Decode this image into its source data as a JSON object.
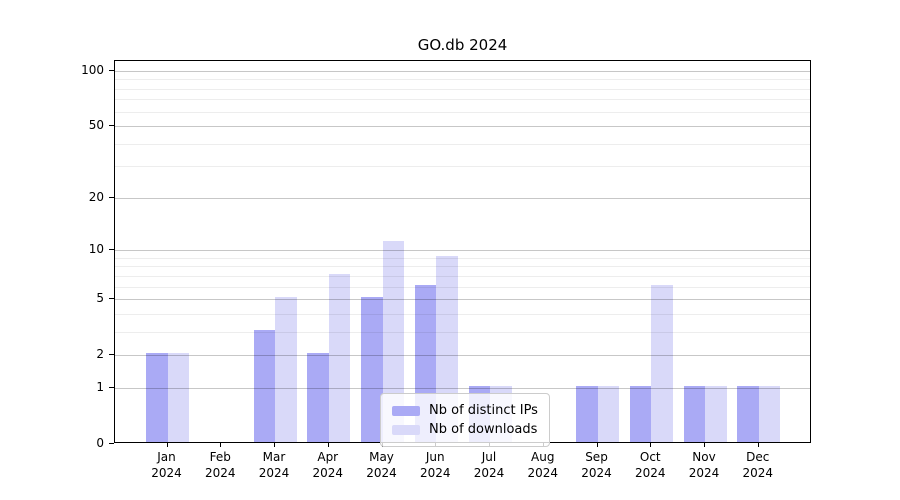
{
  "chart_data": {
    "type": "bar",
    "title": "GO.db 2024",
    "categories": [
      "Jan",
      "Feb",
      "Mar",
      "Apr",
      "May",
      "Jun",
      "Jul",
      "Aug",
      "Sep",
      "Oct",
      "Nov",
      "Dec"
    ],
    "category_year": "2024",
    "series": [
      {
        "name": "Nb of distinct IPs",
        "color": "#aaaaf5",
        "values": [
          2,
          0,
          3,
          2,
          5,
          6,
          1,
          0,
          1,
          1,
          1,
          1
        ]
      },
      {
        "name": "Nb of downloads",
        "color": "#d9d9f9",
        "values": [
          2,
          0,
          5,
          7,
          11,
          9,
          1,
          0,
          1,
          6,
          1,
          1
        ]
      }
    ],
    "y_axis": {
      "scale": "log10(value+1)",
      "major_ticks": [
        0,
        1,
        2,
        5,
        10,
        20,
        50,
        100
      ],
      "minor_ticks": [
        3,
        4,
        6,
        7,
        8,
        9,
        30,
        40,
        60,
        70,
        80,
        90
      ],
      "max": 100
    },
    "legend": {
      "position": "lower center"
    },
    "grid": true,
    "axis_color": "#000000",
    "background_color": "#ffffff"
  }
}
